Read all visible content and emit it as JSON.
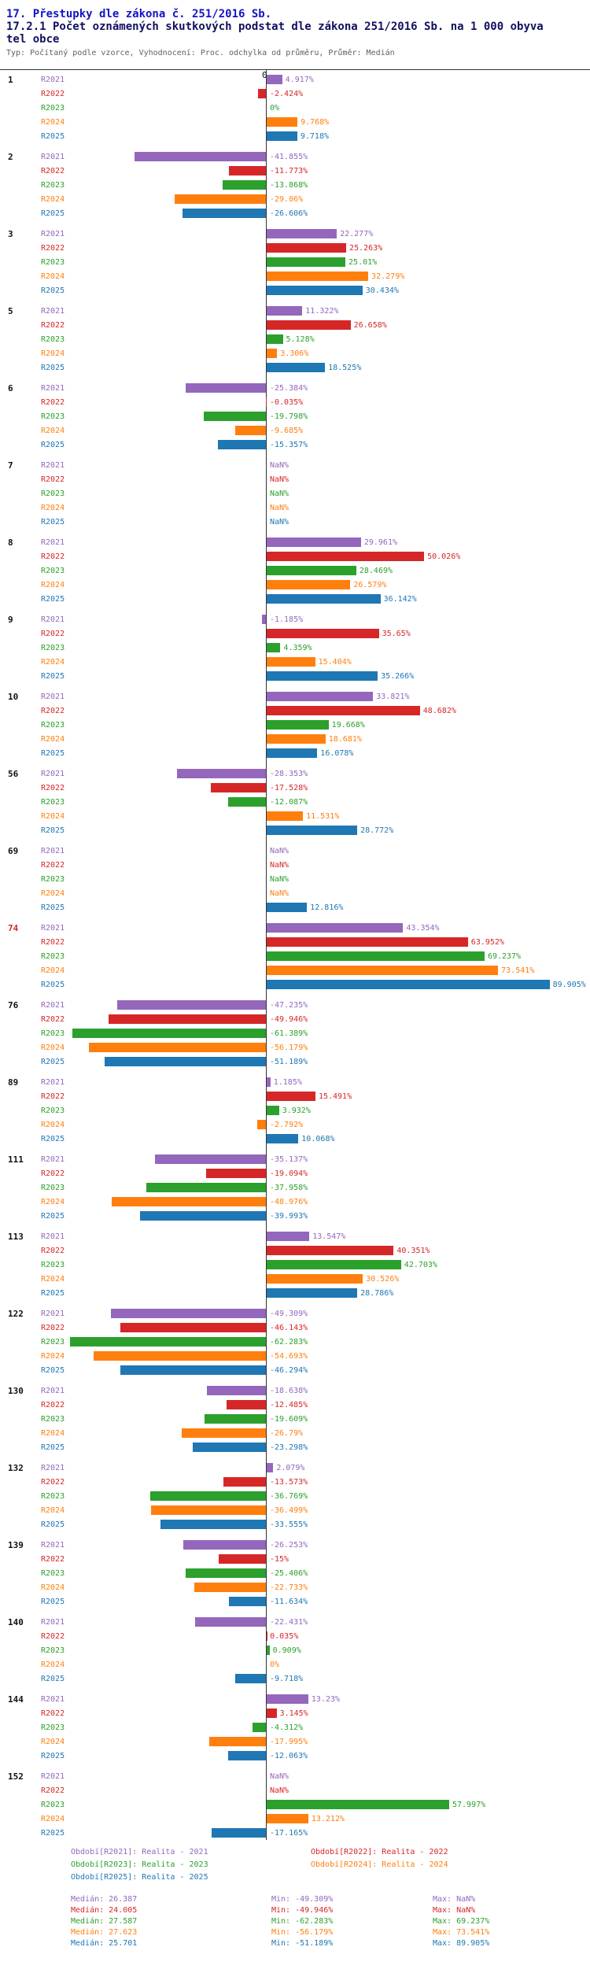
{
  "header": {
    "title": "17. Přestupky dle zákona č. 251/2016 Sb.",
    "subtitle": "17.2.1 Počet oznámených skutkových podstat dle zákona 251/2016 Sb. na 1 000 obyvatel obce",
    "meta": "Typ: Počítaný podle vzorce, Vyhodnocení: Proc. odchylka od průměru, Průměr: Medián"
  },
  "chart_data": {
    "type": "bar",
    "orientation": "horizontal",
    "value_unit": "% deviation from median",
    "axis": {
      "zero_label": "0"
    },
    "highlight_color": "#d62728",
    "series": [
      {
        "key": "R2021",
        "color": "#9467bd",
        "legend": "Období[R2021]: Realita - 2021",
        "median": "Medián: 26.387",
        "min": "Min: -49.309%",
        "max": "Max: NaN%"
      },
      {
        "key": "R2022",
        "color": "#d62728",
        "legend": "Období[R2022]: Realita - 2022",
        "median": "Medián: 24.005",
        "min": "Min: -49.946%",
        "max": "Max: NaN%"
      },
      {
        "key": "R2023",
        "color": "#2ca02c",
        "legend": "Období[R2023]: Realita - 2023",
        "median": "Medián: 27.587",
        "min": "Min: -62.283%",
        "max": "Max: 69.237%"
      },
      {
        "key": "R2024",
        "color": "#ff7f0e",
        "legend": "Období[R2024]: Realita - 2024",
        "median": "Medián: 27.623",
        "min": "Min: -56.179%",
        "max": "Max: 73.541%"
      },
      {
        "key": "R2025",
        "color": "#1f77b4",
        "legend": "Období[R2025]: Realita - 2025",
        "median": "Medián: 25.701",
        "min": "Min: -51.189%",
        "max": "Max: 89.905%"
      }
    ],
    "groups": [
      {
        "label": "1",
        "highlight": false,
        "values": [
          "4.917%",
          "-2.424%",
          "0%",
          "9.768%",
          "9.718%"
        ]
      },
      {
        "label": "2",
        "highlight": false,
        "values": [
          "-41.855%",
          "-11.773%",
          "-13.868%",
          "-29.06%",
          "-26.606%"
        ]
      },
      {
        "label": "3",
        "highlight": false,
        "values": [
          "22.277%",
          "25.263%",
          "25.01%",
          "32.279%",
          "30.434%"
        ]
      },
      {
        "label": "5",
        "highlight": false,
        "values": [
          "11.322%",
          "26.658%",
          "5.128%",
          "3.306%",
          "18.525%"
        ]
      },
      {
        "label": "6",
        "highlight": false,
        "values": [
          "-25.384%",
          "-0.035%",
          "-19.798%",
          "-9.685%",
          "-15.357%"
        ]
      },
      {
        "label": "7",
        "highlight": false,
        "values": [
          "NaN%",
          "NaN%",
          "NaN%",
          "NaN%",
          "NaN%"
        ]
      },
      {
        "label": "8",
        "highlight": false,
        "values": [
          "29.961%",
          "50.026%",
          "28.469%",
          "26.579%",
          "36.142%"
        ]
      },
      {
        "label": "9",
        "highlight": false,
        "values": [
          "-1.185%",
          "35.65%",
          "4.359%",
          "15.404%",
          "35.266%"
        ]
      },
      {
        "label": "10",
        "highlight": false,
        "values": [
          "33.821%",
          "48.682%",
          "19.668%",
          "18.681%",
          "16.078%"
        ]
      },
      {
        "label": "56",
        "highlight": false,
        "values": [
          "-28.353%",
          "-17.528%",
          "-12.087%",
          "11.531%",
          "28.772%"
        ]
      },
      {
        "label": "69",
        "highlight": false,
        "values": [
          "NaN%",
          "NaN%",
          "NaN%",
          "NaN%",
          "12.816%"
        ]
      },
      {
        "label": "74",
        "highlight": true,
        "values": [
          "43.354%",
          "63.952%",
          "69.237%",
          "73.541%",
          "89.905%"
        ]
      },
      {
        "label": "76",
        "highlight": false,
        "values": [
          "-47.235%",
          "-49.946%",
          "-61.389%",
          "-56.179%",
          "-51.189%"
        ]
      },
      {
        "label": "89",
        "highlight": false,
        "values": [
          "1.185%",
          "15.491%",
          "3.932%",
          "-2.792%",
          "10.068%"
        ]
      },
      {
        "label": "111",
        "highlight": false,
        "values": [
          "-35.137%",
          "-19.094%",
          "-37.958%",
          "-48.976%",
          "-39.993%"
        ]
      },
      {
        "label": "113",
        "highlight": false,
        "values": [
          "13.547%",
          "40.351%",
          "42.703%",
          "30.526%",
          "28.786%"
        ]
      },
      {
        "label": "122",
        "highlight": false,
        "values": [
          "-49.309%",
          "-46.143%",
          "-62.283%",
          "-54.693%",
          "-46.294%"
        ]
      },
      {
        "label": "130",
        "highlight": false,
        "values": [
          "-18.638%",
          "-12.485%",
          "-19.609%",
          "-26.79%",
          "-23.298%"
        ]
      },
      {
        "label": "132",
        "highlight": false,
        "values": [
          "2.079%",
          "-13.573%",
          "-36.769%",
          "-36.499%",
          "-33.555%"
        ]
      },
      {
        "label": "139",
        "highlight": false,
        "values": [
          "-26.253%",
          "-15%",
          "-25.406%",
          "-22.733%",
          "-11.634%"
        ]
      },
      {
        "label": "140",
        "highlight": false,
        "values": [
          "-22.431%",
          "0.035%",
          "0.909%",
          "0%",
          "-9.718%"
        ]
      },
      {
        "label": "144",
        "highlight": false,
        "values": [
          "13.23%",
          "3.145%",
          "-4.312%",
          "-17.995%",
          "-12.063%"
        ]
      },
      {
        "label": "152",
        "highlight": false,
        "values": [
          "NaN%",
          "NaN%",
          "57.997%",
          "13.212%",
          "-17.165%"
        ]
      }
    ]
  }
}
